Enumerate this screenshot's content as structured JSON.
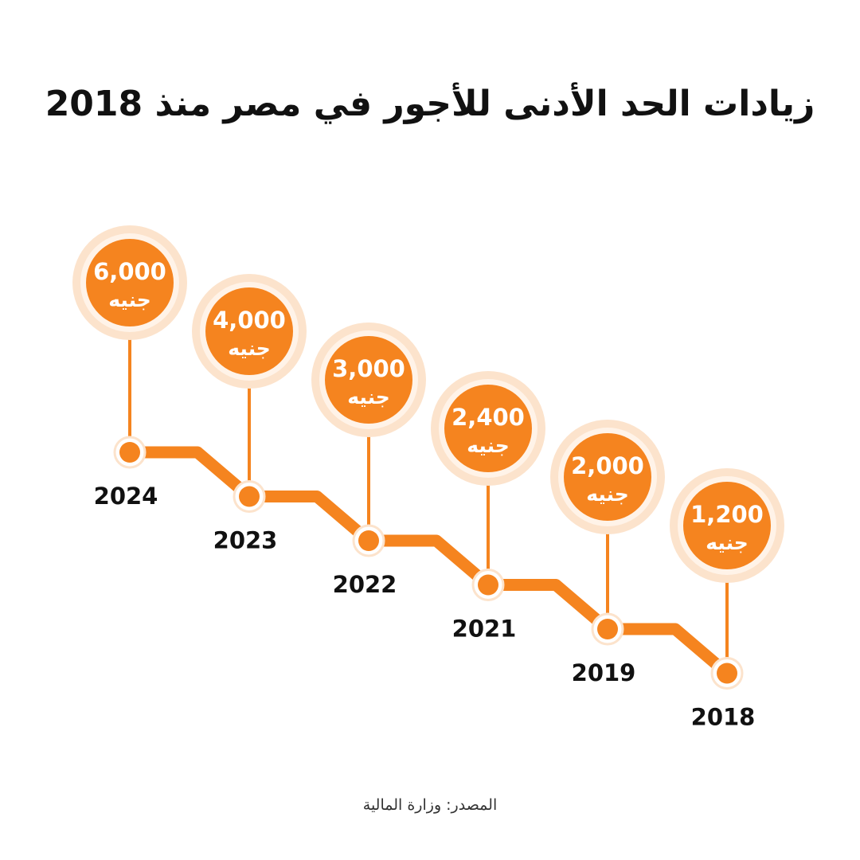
{
  "title": "زيادات الحد الأدنى للأجور في مصر منذ 2018",
  "source": "المصدر: وزارة المالية",
  "colors": {
    "accent": "#F5841F",
    "halo": "#FCE3CC",
    "ring": "#FFFFFF",
    "year_text": "#111111",
    "value_text": "#FFFFFF"
  },
  "chart_data": {
    "type": "line",
    "unit": "جنيه",
    "points": [
      {
        "year": "2024",
        "value": 6000,
        "value_label": "6,000"
      },
      {
        "year": "2023",
        "value": 4000,
        "value_label": "4,000"
      },
      {
        "year": "2022",
        "value": 3000,
        "value_label": "3,000"
      },
      {
        "year": "2021",
        "value": 2400,
        "value_label": "2,400"
      },
      {
        "year": "2019",
        "value": 2000,
        "value_label": "2,000"
      },
      {
        "year": "2018",
        "value": 1200,
        "value_label": "1,200"
      }
    ]
  }
}
